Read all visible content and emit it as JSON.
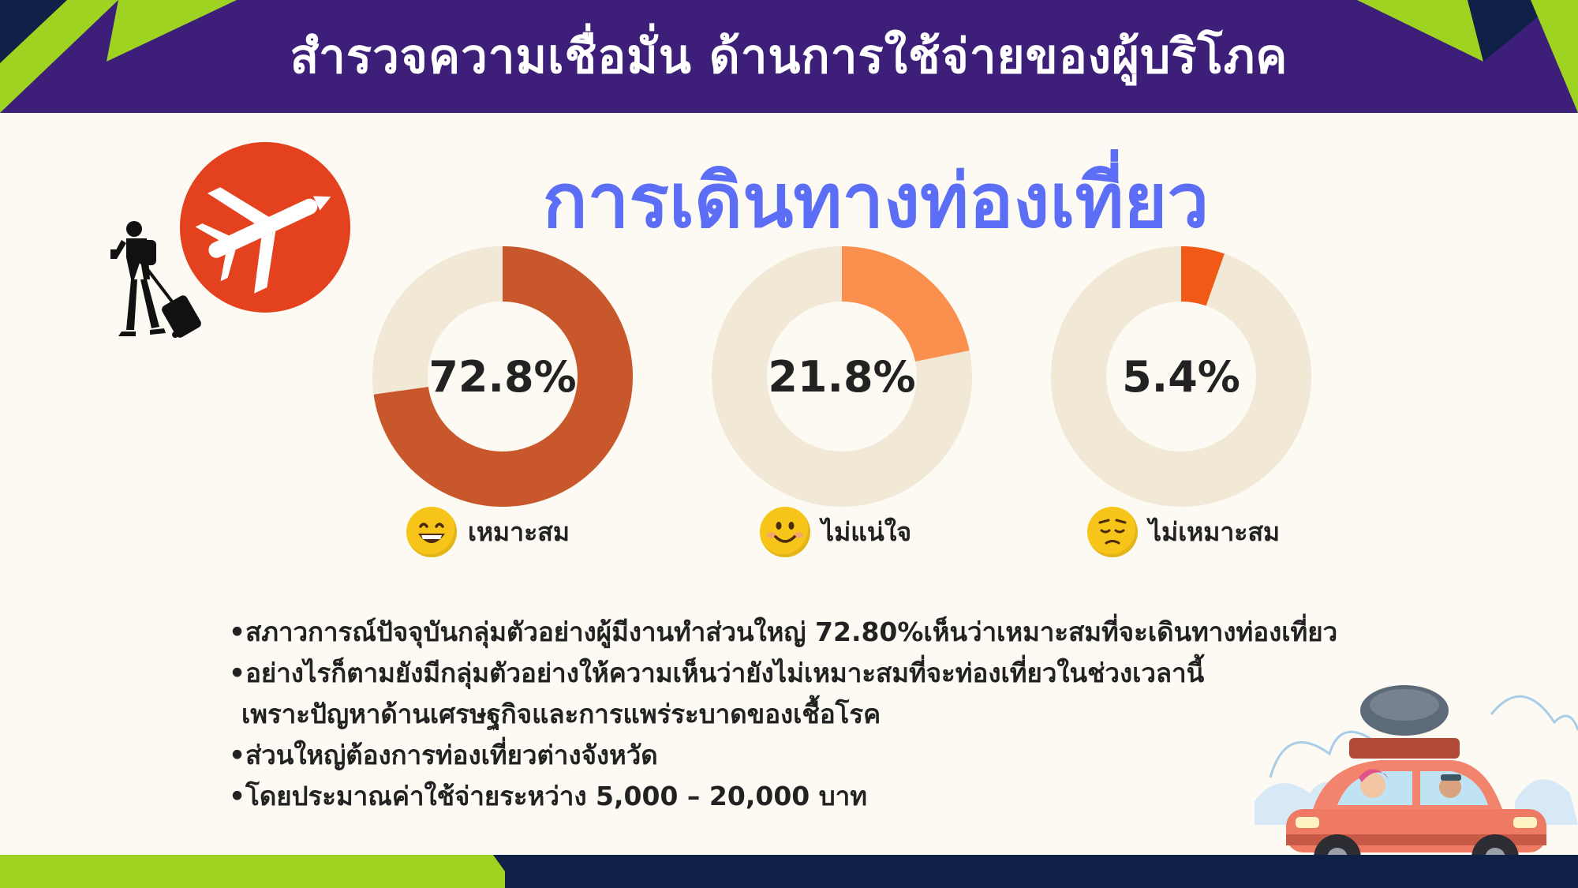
{
  "header": {
    "title": "สำรวจความเชื่อมั่น ด้านการใช้จ่ายของผู้บริโภค"
  },
  "subtitle": "การเดินทางท่องเที่ยว",
  "colors": {
    "header_bg": "#3d1f79",
    "accent_green": "#9ed321",
    "navy": "#0f2147",
    "subtitle": "#5b6ef5",
    "track": "#f1e8d6",
    "series_1": "#c8572c",
    "series_2": "#fb8f4e",
    "series_3": "#f05a16",
    "badge": "#e4411f"
  },
  "icons": [
    "airplane-icon",
    "traveler-icon",
    "grinning-face-icon",
    "smiling-face-icon",
    "pensive-face-icon",
    "car-illustration"
  ],
  "chart_data": {
    "type": "pie",
    "style": "donut",
    "unit": "%",
    "categories": [
      "เหมาะสม",
      "ไม่แน่ใจ",
      "ไม่เหมาะสม"
    ],
    "values": [
      72.8,
      21.8,
      5.4
    ],
    "value_labels": [
      "72.8%",
      "21.8%",
      "5.4%"
    ]
  },
  "bullets": [
    "•สภาวการณ์ปัจจุบันกลุ่มตัวอย่างผู้มีงานทำส่วนใหญ่ 72.80%เห็นว่าเหมาะสมที่จะเดินทางท่องเที่ยว",
    "•อย่างไรก็ตามยังมีกลุ่มตัวอย่างให้ความเห็นว่ายังไม่เหมาะสมที่จะท่องเที่ยวในช่วงเวลานี้",
    "เพราะปัญหาด้านเศรษฐกิจและการแพร่ระบาดของเชื้อโรค",
    "•ส่วนใหญ่ต้องการท่องเที่ยวต่างจังหวัด",
    "•โดยประมาณค่าใช้จ่ายระหว่าง 5,000 – 20,000 บาท"
  ]
}
